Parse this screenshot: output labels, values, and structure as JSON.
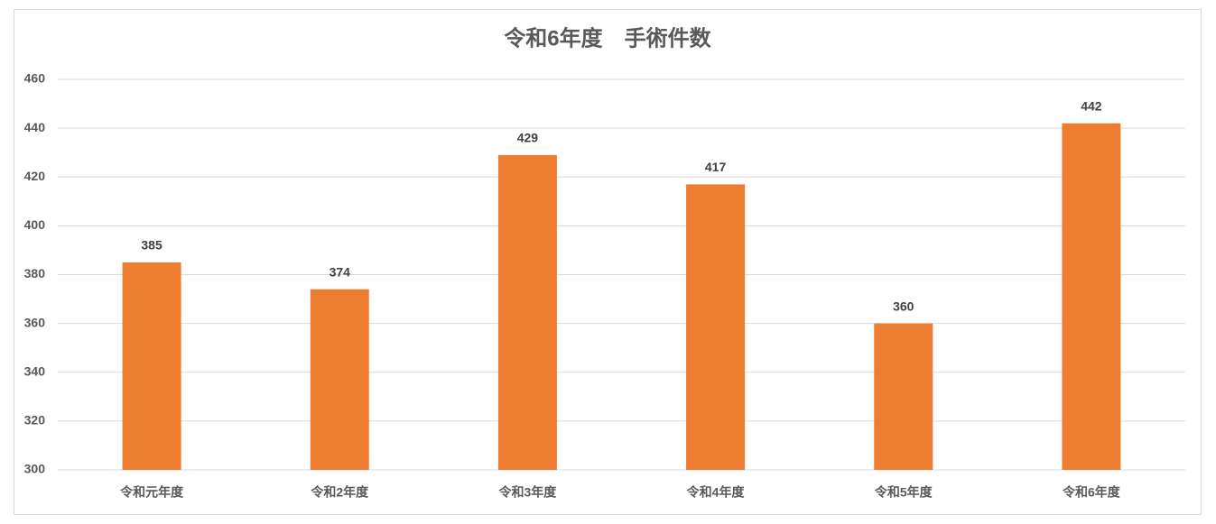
{
  "chart_data": {
    "type": "bar",
    "title": "令和6年度　手術件数",
    "categories": [
      "令和元年度",
      "令和2年度",
      "令和3年度",
      "令和4年度",
      "令和5年度",
      "令和6年度"
    ],
    "values": [
      385,
      374,
      429,
      417,
      360,
      442
    ],
    "color": "#ed7d31",
    "ylim": [
      300,
      460
    ],
    "yticks": [
      300,
      320,
      340,
      360,
      380,
      400,
      420,
      440,
      460
    ],
    "grid": true
  }
}
